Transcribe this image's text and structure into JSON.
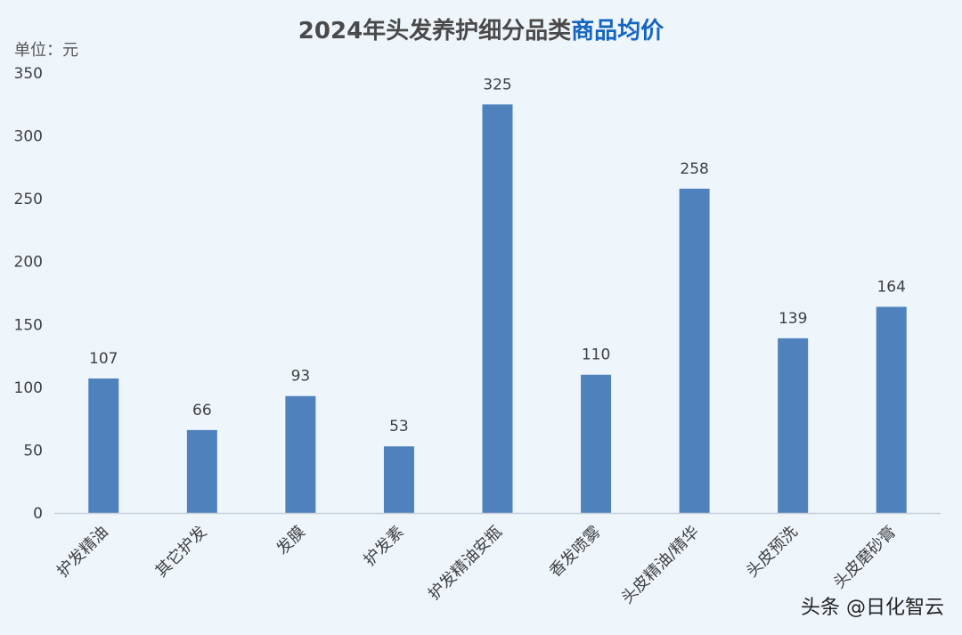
{
  "chart_data": {
    "type": "bar",
    "title": "2024年头发养护细分品类商品均价",
    "title_parts": [
      {
        "text": "2024年头发养护细分品类",
        "color": "#4a4a4a"
      },
      {
        "text": "商品均价",
        "color": "#1565c0"
      }
    ],
    "unit_label": "单位：元",
    "categories": [
      "护发精油",
      "其它护发",
      "发膜",
      "护发素",
      "护发精油安瓶",
      "香发喷雾",
      "头皮精油/精华",
      "头皮预洗",
      "头皮磨砂膏"
    ],
    "series": [
      {
        "values": [
          107,
          66,
          93,
          53,
          325,
          110,
          258,
          139,
          164
        ],
        "color": "#4f81bd"
      }
    ],
    "ylim": [
      0,
      350
    ],
    "yticks": [
      0,
      50,
      100,
      150,
      200,
      250,
      300,
      350
    ],
    "xlabel": "",
    "ylabel": "",
    "grid": false,
    "legend": "none",
    "data_labels": true
  },
  "watermark": "头条 @日化智云",
  "colors": {
    "background": "#eef6fc",
    "axis_line": "#c8d0d8"
  }
}
